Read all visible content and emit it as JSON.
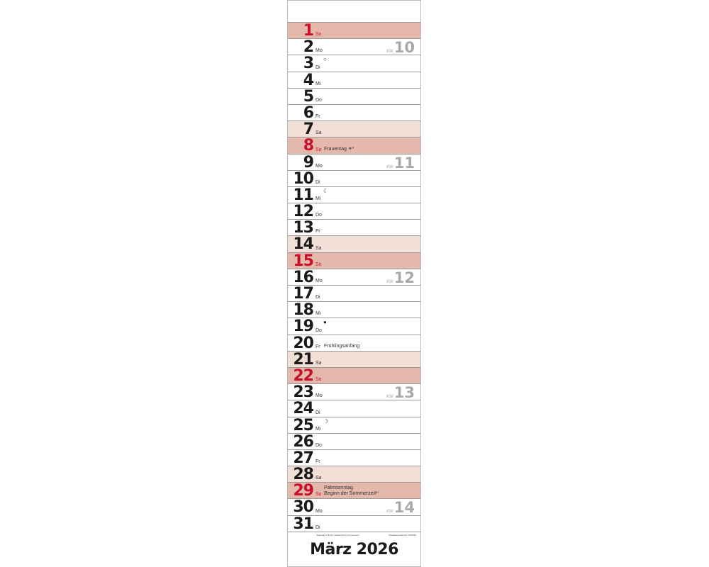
{
  "title": "März 2026",
  "colors": {
    "sunday_bg": "#e4b8ab",
    "saturday_bg": "#f2dfd7",
    "holiday_red": "#c8102e"
  },
  "footnotes": [
    "*Feiertag in Berlin, Mecklenburg-Vorpommern",
    "¹⁾Redaktionsschluss: 06/2024"
  ],
  "days": [
    {
      "n": "1",
      "wd": "So",
      "type": "sun"
    },
    {
      "n": "2",
      "wd": "Mo",
      "kw": "10"
    },
    {
      "n": "3",
      "wd": "Di",
      "moon": "○"
    },
    {
      "n": "4",
      "wd": "Mi"
    },
    {
      "n": "5",
      "wd": "Do"
    },
    {
      "n": "6",
      "wd": "Fr"
    },
    {
      "n": "7",
      "wd": "Sa",
      "type": "sat"
    },
    {
      "n": "8",
      "wd": "So",
      "type": "sun",
      "event": "Frauentag ⚭*"
    },
    {
      "n": "9",
      "wd": "Mo",
      "kw": "11"
    },
    {
      "n": "10",
      "wd": "Di"
    },
    {
      "n": "11",
      "wd": "Mi",
      "moon": "☾"
    },
    {
      "n": "12",
      "wd": "Do"
    },
    {
      "n": "13",
      "wd": "Fr"
    },
    {
      "n": "14",
      "wd": "Sa",
      "type": "sat"
    },
    {
      "n": "15",
      "wd": "So",
      "type": "sun"
    },
    {
      "n": "16",
      "wd": "Mo",
      "kw": "12"
    },
    {
      "n": "17",
      "wd": "Di"
    },
    {
      "n": "18",
      "wd": "Mi"
    },
    {
      "n": "19",
      "wd": "Do",
      "moon": "●"
    },
    {
      "n": "20",
      "wd": "Fr",
      "event": "Frühlingsanfang"
    },
    {
      "n": "21",
      "wd": "Sa",
      "type": "sat"
    },
    {
      "n": "22",
      "wd": "So",
      "type": "sun"
    },
    {
      "n": "23",
      "wd": "Mo",
      "kw": "13"
    },
    {
      "n": "24",
      "wd": "Di"
    },
    {
      "n": "25",
      "wd": "Mi",
      "moon": "☽"
    },
    {
      "n": "26",
      "wd": "Do"
    },
    {
      "n": "27",
      "wd": "Fr"
    },
    {
      "n": "28",
      "wd": "Sa",
      "type": "sat"
    },
    {
      "n": "29",
      "wd": "So",
      "type": "sun",
      "event": "Palmsonntag\nBeginn der Sommerzeit¹⁾"
    },
    {
      "n": "30",
      "wd": "Mo",
      "kw": "14"
    },
    {
      "n": "31",
      "wd": "Di"
    }
  ],
  "kw_label": "KW"
}
